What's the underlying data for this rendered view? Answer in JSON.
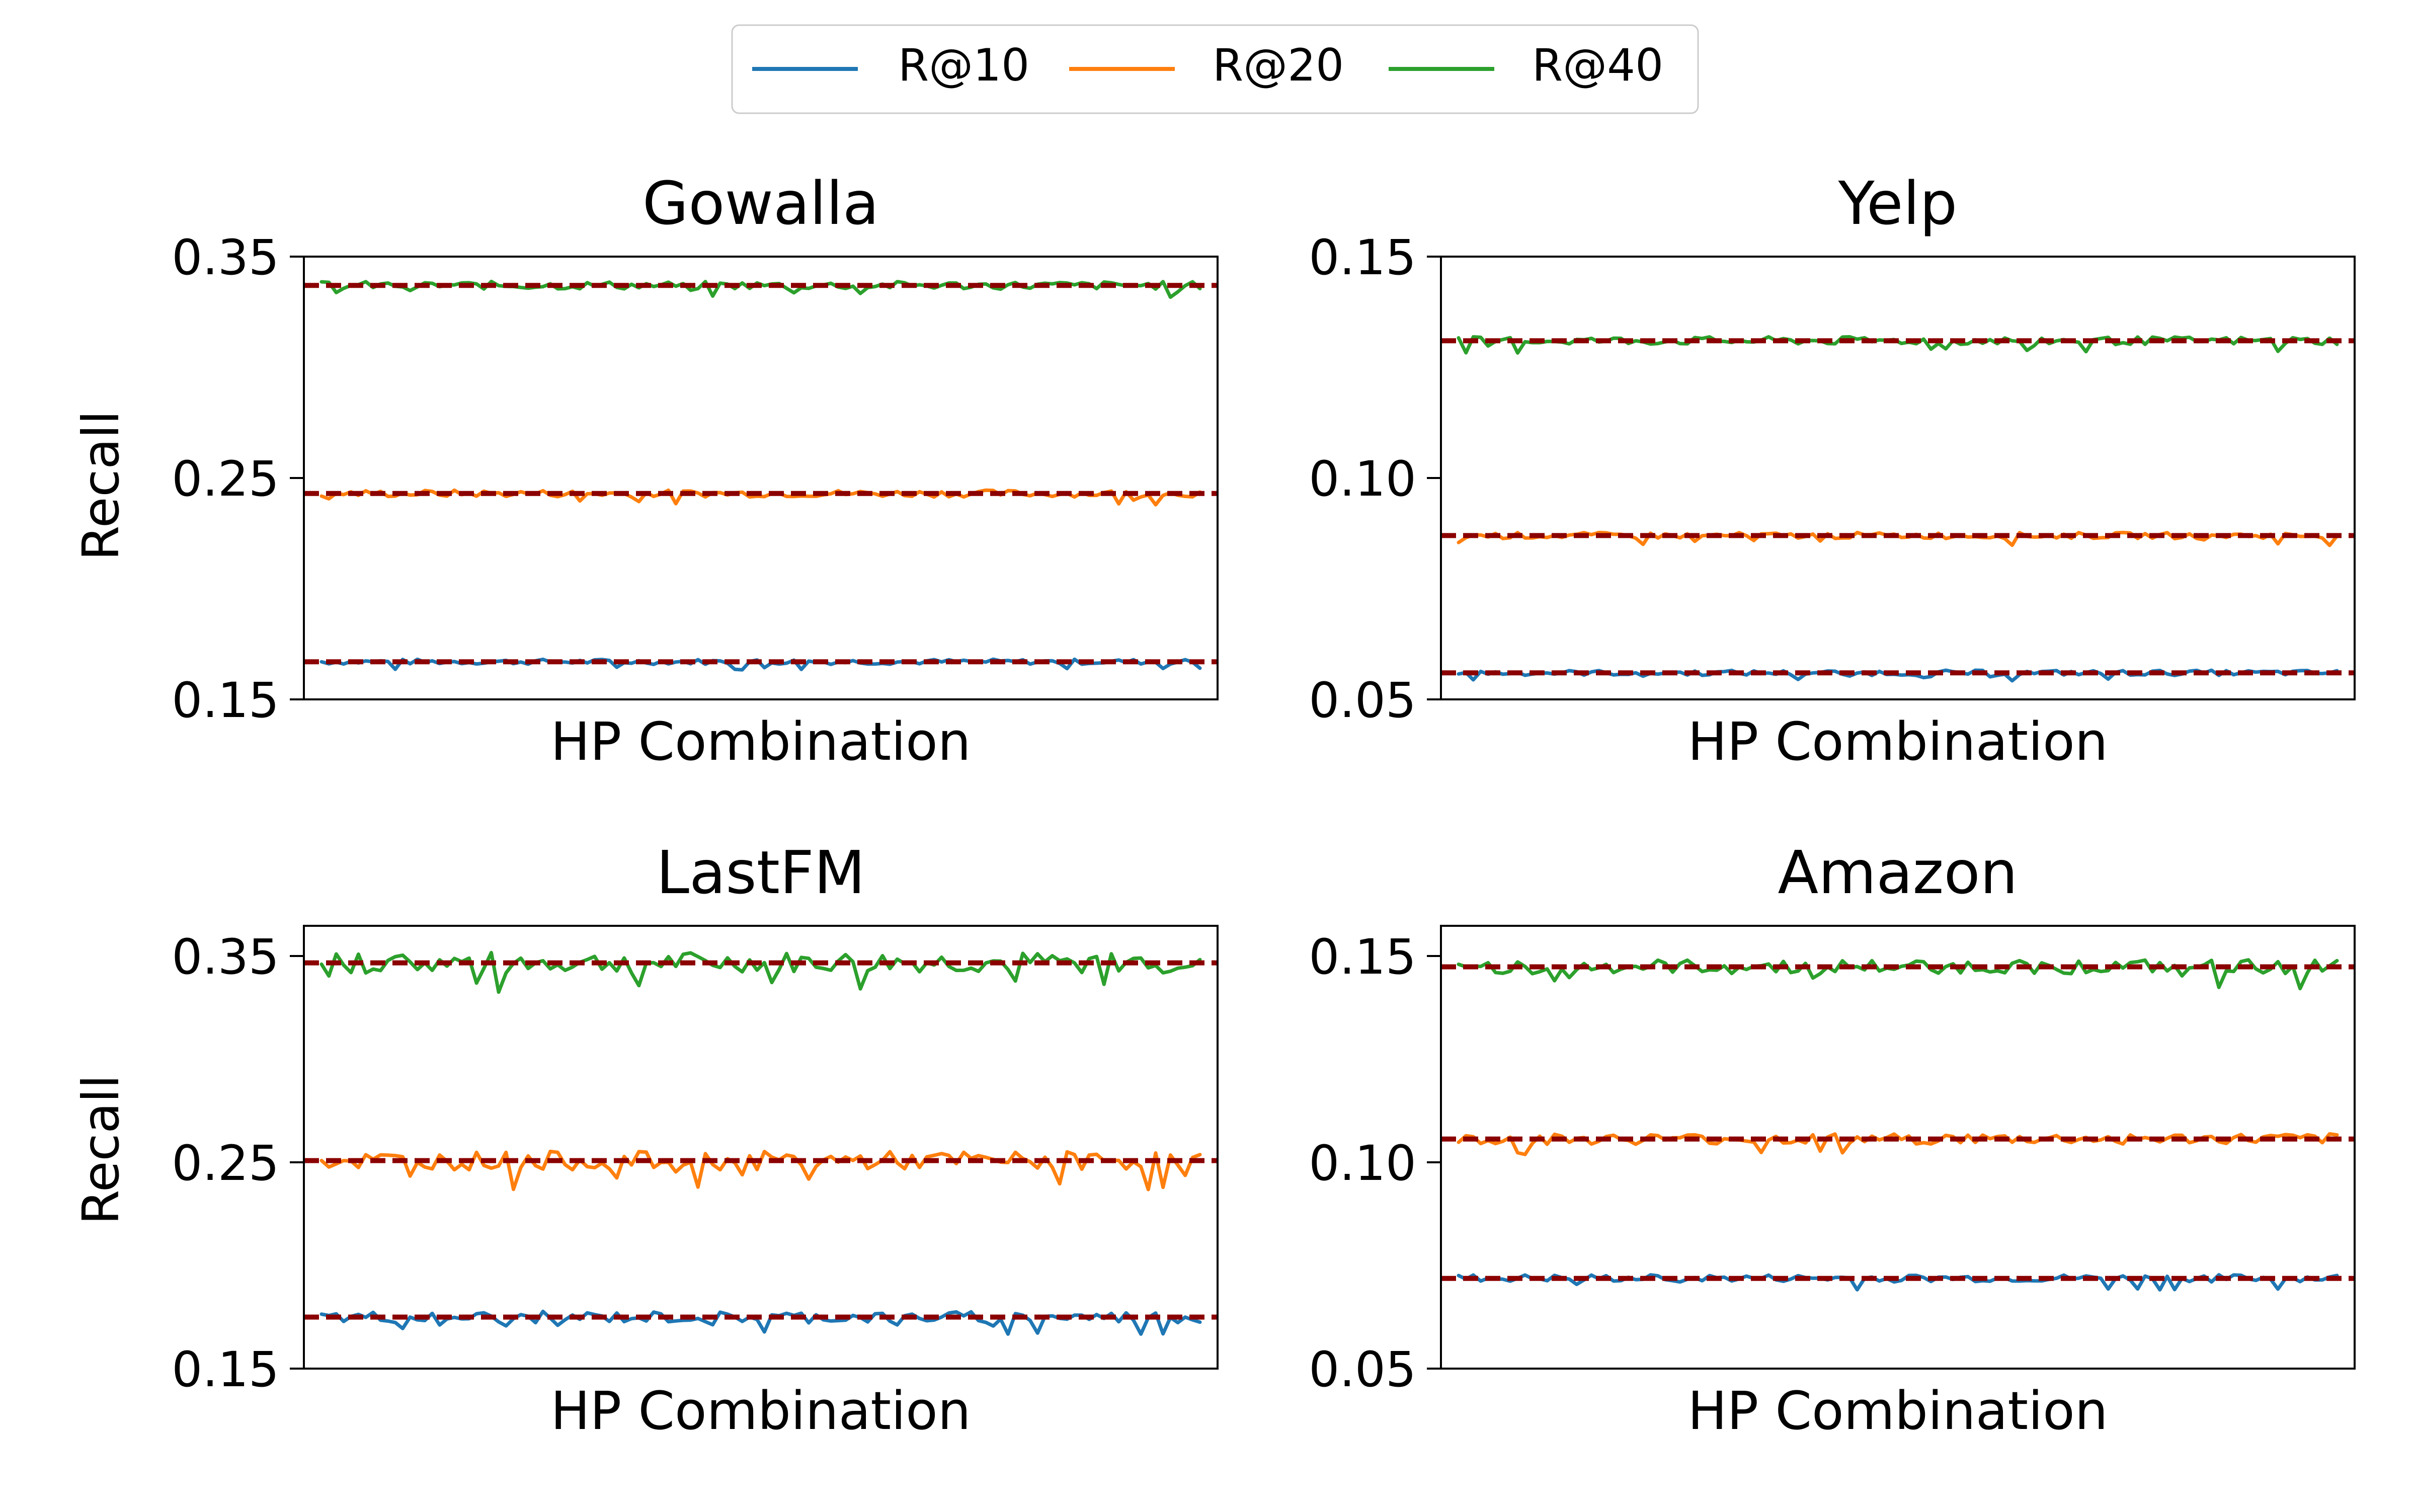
{
  "chart_data": {
    "legend": [
      {
        "label": "R@10",
        "color": "#1f77b4"
      },
      {
        "label": "R@20",
        "color": "#ff7f0e"
      },
      {
        "label": "R@40",
        "color": "#2ca02c"
      }
    ],
    "ref_line_color": "#8b0000",
    "panels": [
      {
        "type": "line",
        "title": "Gowalla",
        "xlabel": "HP Combination",
        "ylabel": "Recall",
        "ylim": [
          0.15,
          0.35
        ],
        "yticks": [
          "0.35",
          "0.25",
          "0.15"
        ],
        "n_points": 120,
        "reference": [
          0.167,
          0.243,
          0.337
        ],
        "noise": [
          0.0012,
          0.0016,
          0.0018
        ]
      },
      {
        "type": "line",
        "title": "Yelp",
        "xlabel": "HP Combination",
        "ylabel": "",
        "ylim": [
          0.05,
          0.15
        ],
        "yticks": [
          "0.15",
          "0.10",
          "0.05"
        ],
        "n_points": 120,
        "reference": [
          0.056,
          0.087,
          0.131
        ],
        "noise": [
          0.0006,
          0.0007,
          0.0009
        ]
      },
      {
        "type": "line",
        "title": "LastFM",
        "xlabel": "HP Combination",
        "ylabel": "Recall",
        "ylim": [
          0.15,
          0.365
        ],
        "yticks": [
          "0.35",
          "0.25",
          "0.15"
        ],
        "n_points": 120,
        "reference": [
          0.175,
          0.251,
          0.347
        ],
        "noise": [
          0.0028,
          0.0045,
          0.005
        ]
      },
      {
        "type": "line",
        "title": "Amazon",
        "xlabel": "HP Combination",
        "ylabel": "",
        "ylim": [
          0.05,
          0.158
        ],
        "yticks": [
          "0.15",
          "0.10",
          "0.05"
        ],
        "n_points": 120,
        "reference": [
          0.072,
          0.106,
          0.148
        ],
        "noise": [
          0.0009,
          0.0013,
          0.0017
        ]
      }
    ]
  }
}
